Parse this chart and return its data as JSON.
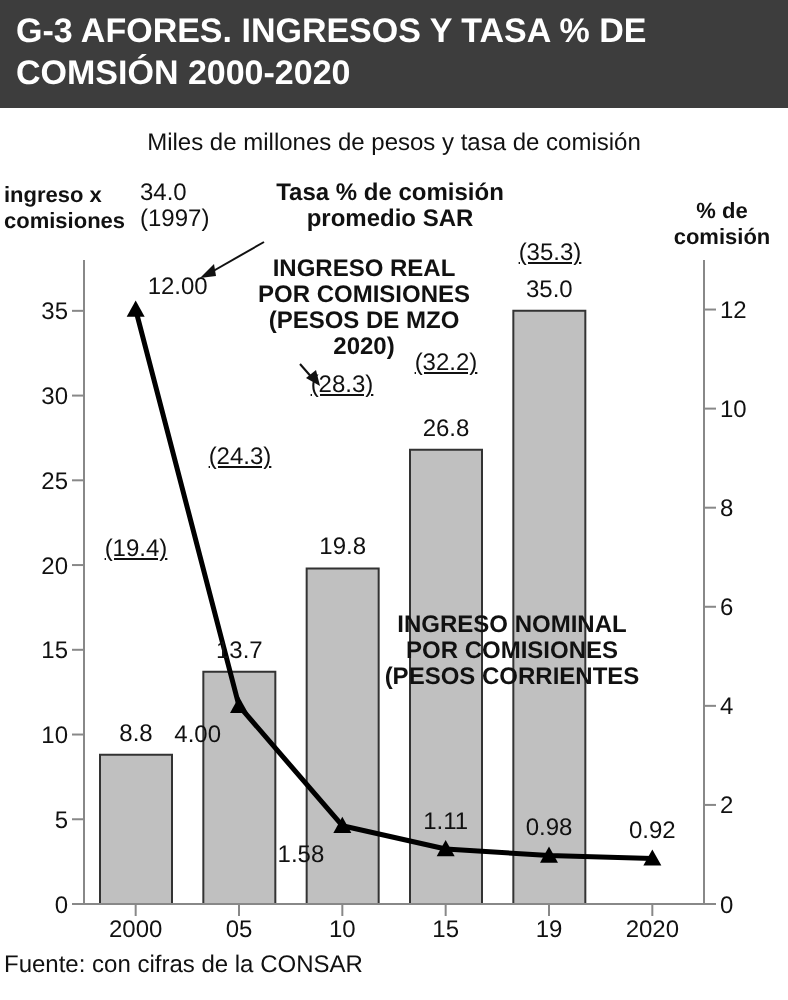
{
  "chart_data": {
    "type": "bar",
    "title": "G-3 AFORES. INGRESOS Y TASA % DE COMSIÓN 2000-2020",
    "subtitle": "Miles de millones de pesos y tasa de comisión",
    "ylabel": "ingreso x comisiones",
    "y2label": "% de comisión",
    "categories": [
      "2000",
      "05",
      "10",
      "15",
      "19",
      "2020"
    ],
    "series": [
      {
        "color": "#c0c0c0",
        "values": [
          8.8,
          13.7,
          19.8,
          26.8,
          35.0,
          null
        ],
        "value_labels": [
          "8.8",
          "13.7",
          "19.8",
          "26.8",
          "35.0",
          null
        ]
      },
      {
        "type": "line",
        "axis": "y2",
        "color": "#000000",
        "marker": "triangle",
        "values": [
          12.0,
          4.0,
          1.58,
          1.11,
          0.98,
          0.92
        ],
        "value_labels": [
          "12.00",
          "4.00",
          "1.58",
          "1.11",
          "0.98",
          "0.92"
        ]
      }
    ],
    "ylim": [
      0,
      38
    ],
    "yticks": [
      0,
      5,
      10,
      15,
      20,
      25,
      30,
      35
    ],
    "y2lim": [
      0,
      13
    ],
    "y2ticks": [
      0,
      2,
      4,
      6,
      8,
      10,
      12
    ],
    "annotations": [
      "34.0 (1997)",
      "Tasa % de comisión promedio SAR",
      "INGRESO REAL POR COMISIONES (PESOS DE MZO 2020)",
      "(19.4)",
      "(24.3)",
      "(28.3)",
      "(32.2)",
      "(35.3)",
      "INGRESO NOMINAL POR COMISIONES (PESOS CORRIENTES",
      "Fuente: con cifras de la CONSAR"
    ]
  }
}
